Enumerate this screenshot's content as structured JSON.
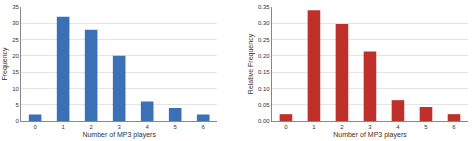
{
  "chart_data": [
    {
      "type": "bar",
      "x_label": "Number of MP3 players",
      "y_label": "Frequency",
      "categories": [
        "0",
        "1",
        "2",
        "3",
        "4",
        "5",
        "6"
      ],
      "values": [
        2,
        32,
        28,
        20,
        6,
        4,
        2
      ],
      "color": "#3b6fb6",
      "ylim": [
        0,
        35
      ],
      "yticks": [
        0,
        5,
        10,
        15,
        20,
        25,
        30,
        35
      ],
      "grid": true
    },
    {
      "type": "bar",
      "x_label": "Number of MP3 players",
      "y_label": "Relative Frequency",
      "categories": [
        "0",
        "1",
        "2",
        "3",
        "4",
        "5",
        "6"
      ],
      "values": [
        0.021,
        0.34,
        0.298,
        0.213,
        0.064,
        0.043,
        0.021
      ],
      "color": "#c0302b",
      "ylim": [
        0,
        0.35
      ],
      "yticks": [
        {
          "value": 0,
          "label": "0.00"
        },
        {
          "value": 0.05,
          "label": "0.05"
        },
        {
          "value": 0.1,
          "label": "0.10"
        },
        {
          "value": 0.15,
          "label": "0.15"
        },
        {
          "value": 0.2,
          "label": "0.20"
        },
        {
          "value": 0.25,
          "label": "0.25"
        },
        {
          "value": 0.3,
          "label": "0.30"
        },
        {
          "value": 0.35,
          "label": "0.35"
        }
      ],
      "grid": true
    }
  ]
}
